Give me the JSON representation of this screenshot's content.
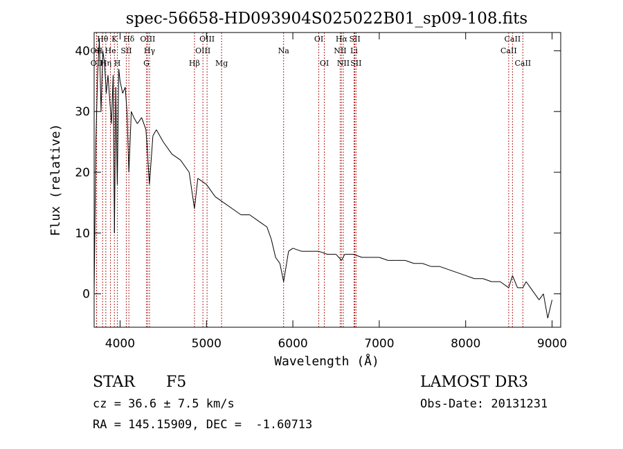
{
  "chart_data": {
    "type": "line",
    "title": "spec-56658-HD093904S025022B01_sp09-108.fits",
    "xlabel": "Wavelength (Å)",
    "ylabel": "Flux (relative)",
    "xlim": [
      3700,
      9100
    ],
    "ylim": [
      -5.5,
      43
    ],
    "x_ticks": [
      4000,
      5000,
      6000,
      7000,
      8000,
      9000
    ],
    "y_ticks": [
      0,
      10,
      20,
      30,
      40
    ],
    "series": [
      {
        "name": "flux",
        "x": [
          3700,
          3720,
          3740,
          3760,
          3780,
          3800,
          3820,
          3840,
          3860,
          3880,
          3900,
          3920,
          3935,
          3950,
          3968,
          3985,
          4000,
          4030,
          4060,
          4080,
          4102,
          4130,
          4160,
          4200,
          4250,
          4300,
          4340,
          4380,
          4420,
          4500,
          4600,
          4700,
          4800,
          4861,
          4900,
          5000,
          5100,
          5200,
          5300,
          5400,
          5500,
          5600,
          5700,
          5750,
          5800,
          5850,
          5893,
          5950,
          6000,
          6100,
          6200,
          6300,
          6400,
          6500,
          6563,
          6600,
          6700,
          6800,
          6900,
          7000,
          7100,
          7200,
          7300,
          7400,
          7500,
          7600,
          7700,
          7800,
          7900,
          8000,
          8100,
          8200,
          8300,
          8400,
          8498,
          8542,
          8600,
          8662,
          8700,
          8800,
          8850,
          8900,
          8950,
          9000
        ],
        "y": [
          0,
          25,
          36,
          42,
          30,
          40,
          38,
          33,
          36,
          32,
          28,
          36,
          10,
          34,
          18,
          37,
          35,
          33,
          34,
          30,
          20,
          30,
          29,
          28,
          29,
          27,
          18,
          26,
          27,
          25,
          23,
          22,
          20,
          14,
          19,
          18,
          16,
          15,
          14,
          13,
          13,
          12,
          11,
          9,
          6,
          5,
          2,
          7,
          7.5,
          7,
          7,
          7,
          6.5,
          6.5,
          5.5,
          6.5,
          6.5,
          6,
          6,
          6,
          5.5,
          5.5,
          5.5,
          5,
          5,
          4.5,
          4.5,
          4,
          3.5,
          3,
          2.5,
          2.5,
          2,
          2,
          1,
          3,
          1,
          1,
          2,
          0,
          -1,
          0,
          -4,
          -1
        ]
      }
    ],
    "lines": [
      {
        "label": "Hθ",
        "x": 3798,
        "row": 0
      },
      {
        "label": "OII",
        "x": 3727,
        "row": 1
      },
      {
        "label": "OII",
        "x": 3729,
        "row": 2
      },
      {
        "label": "Hη",
        "x": 3835,
        "row": 2
      },
      {
        "label": "He",
        "x": 3889,
        "row": 1
      },
      {
        "label": "K",
        "x": 3934,
        "row": 0
      },
      {
        "label": "H",
        "x": 3969,
        "row": 2
      },
      {
        "label": "SII",
        "x": 4072,
        "row": 1
      },
      {
        "label": "Hδ",
        "x": 4102,
        "row": 0
      },
      {
        "label": "OIII",
        "x": 4320,
        "row": 0
      },
      {
        "label": "Hγ",
        "x": 4341,
        "row": 1
      },
      {
        "label": "G",
        "x": 4305,
        "row": 2
      },
      {
        "label": "Hβ",
        "x": 4861,
        "row": 2
      },
      {
        "label": "OIII",
        "x": 5007,
        "row": 0
      },
      {
        "label": "OIII",
        "x": 4959,
        "row": 1
      },
      {
        "label": "Mg",
        "x": 5175,
        "row": 2
      },
      {
        "label": "Na",
        "x": 5893,
        "row": 1
      },
      {
        "label": "OI",
        "x": 6300,
        "row": 0
      },
      {
        "label": "OI",
        "x": 6364,
        "row": 2
      },
      {
        "label": "Hα",
        "x": 6563,
        "row": 0
      },
      {
        "label": "NII",
        "x": 6548,
        "row": 1
      },
      {
        "label": "NII",
        "x": 6584,
        "row": 2
      },
      {
        "label": "SII",
        "x": 6717,
        "row": 0
      },
      {
        "label": "Li",
        "x": 6708,
        "row": 1
      },
      {
        "label": "SII",
        "x": 6731,
        "row": 2
      },
      {
        "label": "CaII",
        "x": 8542,
        "row": 0
      },
      {
        "label": "CaII",
        "x": 8498,
        "row": 1
      },
      {
        "label": "CaII",
        "x": 8662,
        "row": 2
      }
    ],
    "line_color": "#b22222",
    "data_color": "#000000"
  },
  "footer": {
    "object_type": "STAR",
    "subclass": "F5",
    "survey": "LAMOST DR3",
    "cz": "cz = 36.6 ± 7.5 km/s",
    "obs_date": "Obs-Date: 20131231",
    "coords": "RA = 145.15909, DEC =  -1.60713"
  }
}
